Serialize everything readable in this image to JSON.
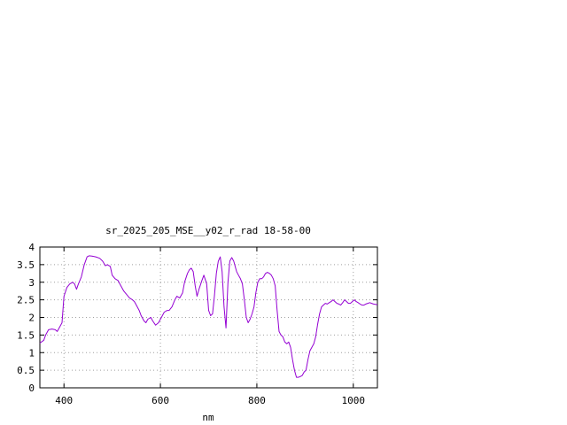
{
  "chart_data": {
    "type": "line",
    "title": "sr_2025_205_MSE__y02_r_rad 18-58-00",
    "xlabel": "nm",
    "ylabel": "",
    "xlim": [
      350,
      1050
    ],
    "ylim": [
      0,
      4
    ],
    "x_ticks": [
      400,
      600,
      800,
      1000
    ],
    "x_tick_labels": [
      "400",
      "600",
      "800",
      "1000"
    ],
    "y_ticks": [
      0,
      0.5,
      1,
      1.5,
      2,
      2.5,
      3,
      3.5,
      4
    ],
    "y_tick_labels": [
      "0",
      "0.5",
      "1",
      "1.5",
      "2",
      "2.5",
      "3",
      "3.5",
      "4"
    ],
    "grid": true,
    "legend": "none",
    "series": [
      {
        "color": "#9400d3",
        "x": [
          350,
          358,
          362,
          368,
          375,
          382,
          386,
          390,
          396,
          400,
          406,
          412,
          418,
          422,
          426,
          430,
          436,
          442,
          448,
          452,
          458,
          466,
          474,
          480,
          486,
          490,
          496,
          500,
          506,
          512,
          518,
          524,
          530,
          536,
          542,
          546,
          550,
          556,
          560,
          566,
          570,
          574,
          580,
          584,
          590,
          596,
          602,
          608,
          614,
          618,
          624,
          630,
          634,
          640,
          646,
          650,
          656,
          660,
          664,
          668,
          672,
          676,
          680,
          686,
          690,
          696,
          700,
          704,
          708,
          712,
          716,
          720,
          724,
          728,
          732,
          736,
          740,
          744,
          748,
          752,
          756,
          758,
          762,
          766,
          770,
          774,
          778,
          782,
          786,
          790,
          794,
          798,
          802,
          806,
          810,
          814,
          818,
          822,
          826,
          830,
          834,
          838,
          842,
          846,
          850,
          854,
          858,
          862,
          866,
          870,
          874,
          878,
          882,
          886,
          890,
          894,
          898,
          902,
          906,
          910,
          914,
          918,
          922,
          926,
          930,
          934,
          938,
          942,
          946,
          950,
          954,
          958,
          962,
          966,
          970,
          974,
          978,
          982,
          986,
          990,
          994,
          998,
          1002,
          1006,
          1010,
          1014,
          1018,
          1022,
          1026,
          1030,
          1034,
          1038,
          1042,
          1046,
          1050
        ],
        "y": [
          1.27,
          1.35,
          1.5,
          1.65,
          1.67,
          1.65,
          1.6,
          1.7,
          1.85,
          2.6,
          2.85,
          2.95,
          3.0,
          2.95,
          2.8,
          2.95,
          3.15,
          3.5,
          3.72,
          3.75,
          3.74,
          3.72,
          3.68,
          3.6,
          3.47,
          3.5,
          3.45,
          3.2,
          3.1,
          3.05,
          2.9,
          2.75,
          2.65,
          2.55,
          2.5,
          2.45,
          2.35,
          2.2,
          2.05,
          1.9,
          1.85,
          1.95,
          2.0,
          1.9,
          1.78,
          1.85,
          2.0,
          2.15,
          2.2,
          2.2,
          2.3,
          2.5,
          2.6,
          2.55,
          2.7,
          3.0,
          3.25,
          3.35,
          3.4,
          3.3,
          2.9,
          2.6,
          2.8,
          3.05,
          3.2,
          2.95,
          2.2,
          2.05,
          2.1,
          2.6,
          3.25,
          3.6,
          3.72,
          3.3,
          2.3,
          1.7,
          3.0,
          3.6,
          3.7,
          3.6,
          3.4,
          3.3,
          3.2,
          3.1,
          2.95,
          2.5,
          2.0,
          1.85,
          1.95,
          2.1,
          2.3,
          2.7,
          3.0,
          3.1,
          3.1,
          3.15,
          3.25,
          3.28,
          3.25,
          3.2,
          3.1,
          2.9,
          2.2,
          1.6,
          1.5,
          1.45,
          1.3,
          1.25,
          1.3,
          1.15,
          0.8,
          0.5,
          0.3,
          0.3,
          0.32,
          0.35,
          0.45,
          0.5,
          0.8,
          1.05,
          1.15,
          1.25,
          1.45,
          1.8,
          2.1,
          2.3,
          2.35,
          2.4,
          2.38,
          2.42,
          2.45,
          2.5,
          2.45,
          2.4,
          2.38,
          2.35,
          2.42,
          2.5,
          2.45,
          2.4,
          2.4,
          2.45,
          2.5,
          2.45,
          2.42,
          2.38,
          2.35,
          2.35,
          2.38,
          2.4,
          2.42,
          2.4,
          2.38,
          2.37,
          2.36
        ]
      }
    ]
  }
}
